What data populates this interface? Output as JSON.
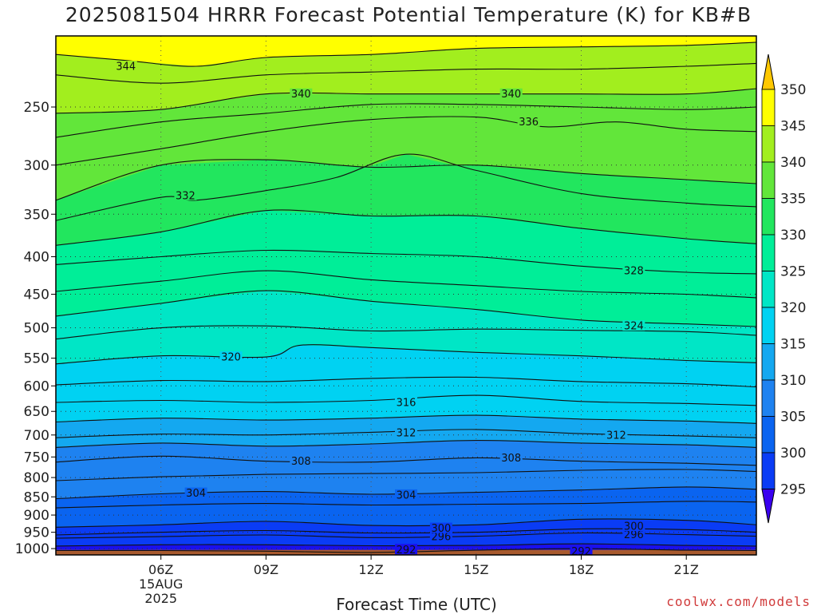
{
  "chart_data": {
    "type": "contour",
    "title": "2025081504 HRRR Forecast Potential Temperature (K) for KB#B",
    "xlabel": "Forecast Time (UTC)",
    "ylabel": "",
    "x_unit": "hours since 2025-08-15 00Z",
    "xlim": [
      3,
      23
    ],
    "x_ticks": [
      {
        "hour": 6,
        "label": "06Z",
        "sub": [
          "15AUG",
          "2025"
        ]
      },
      {
        "hour": 9,
        "label": "09Z"
      },
      {
        "hour": 12,
        "label": "12Z"
      },
      {
        "hour": 15,
        "label": "15Z"
      },
      {
        "hour": 18,
        "label": "18Z"
      },
      {
        "hour": 21,
        "label": "21Z"
      }
    ],
    "y_scale": "log-pressure",
    "ylim": [
      1020,
      200
    ],
    "y_ticks": [
      250,
      300,
      350,
      400,
      450,
      500,
      550,
      600,
      650,
      700,
      750,
      800,
      850,
      900,
      950,
      1000
    ],
    "grid": "dotted",
    "legend": "right colorbar",
    "colorbar": {
      "labels": [
        295,
        300,
        305,
        310,
        315,
        320,
        325,
        330,
        335,
        340,
        345,
        350
      ],
      "colors": [
        "#1a10ee",
        "#0a3cf5",
        "#0a64f0",
        "#1e82f0",
        "#14a8f0",
        "#00d2f2",
        "#00e6c6",
        "#00ee98",
        "#22e65e",
        "#62e63a",
        "#a2ee1e",
        "#ffff00"
      ]
    },
    "ground_color": "#a85a2e",
    "contour_lines": [
      {
        "value": 292,
        "label": "292",
        "points": [
          [
            3,
            1006
          ],
          [
            6,
            1006
          ],
          [
            9,
            1008
          ],
          [
            12,
            1012
          ],
          [
            15,
            1005
          ],
          [
            18,
            1000
          ],
          [
            21,
            1005
          ],
          [
            23,
            1006
          ]
        ],
        "label_at": [
          [
            13,
            1003
          ],
          [
            18,
            1009
          ]
        ]
      },
      {
        "value": 294,
        "label": "",
        "points": [
          [
            3,
            992
          ],
          [
            6,
            988
          ],
          [
            9,
            988
          ],
          [
            12,
            991
          ],
          [
            15,
            990
          ],
          [
            18,
            985
          ],
          [
            21,
            990
          ],
          [
            23,
            992
          ]
        ],
        "label_at": []
      },
      {
        "value": 296,
        "label": "296",
        "points": [
          [
            3,
            968
          ],
          [
            6,
            963
          ],
          [
            9,
            958
          ],
          [
            12,
            966
          ],
          [
            15,
            962
          ],
          [
            18,
            952
          ],
          [
            21,
            957
          ],
          [
            23,
            962
          ]
        ],
        "label_at": [
          [
            14,
            963
          ],
          [
            19.5,
            957
          ]
        ]
      },
      {
        "value": 298,
        "label": "",
        "points": [
          [
            3,
            958
          ],
          [
            6,
            950
          ],
          [
            9,
            945
          ],
          [
            12,
            952
          ],
          [
            15,
            950
          ],
          [
            18,
            940
          ],
          [
            21,
            942
          ],
          [
            23,
            950
          ]
        ],
        "label_at": []
      },
      {
        "value": 300,
        "label": "300",
        "points": [
          [
            3,
            935
          ],
          [
            6,
            928
          ],
          [
            9,
            918
          ],
          [
            12,
            930
          ],
          [
            15,
            928
          ],
          [
            18,
            912
          ],
          [
            21,
            915
          ],
          [
            23,
            928
          ]
        ],
        "label_at": [
          [
            14,
            938
          ],
          [
            19.5,
            932
          ]
        ]
      },
      {
        "value": 302,
        "label": "",
        "points": [
          [
            3,
            880
          ],
          [
            6,
            872
          ],
          [
            9,
            868
          ],
          [
            12,
            872
          ],
          [
            15,
            870
          ],
          [
            18,
            868
          ],
          [
            21,
            862
          ],
          [
            23,
            864
          ]
        ],
        "label_at": []
      },
      {
        "value": 304,
        "label": "304",
        "points": [
          [
            3,
            855
          ],
          [
            6,
            842
          ],
          [
            9,
            836
          ],
          [
            12,
            843
          ],
          [
            15,
            838
          ],
          [
            18,
            832
          ],
          [
            21,
            824
          ],
          [
            23,
            830
          ]
        ],
        "label_at": [
          [
            7,
            840
          ],
          [
            13,
            845
          ]
        ]
      },
      {
        "value": 306,
        "label": "",
        "points": [
          [
            3,
            808
          ],
          [
            6,
            798
          ],
          [
            9,
            792
          ],
          [
            12,
            790
          ],
          [
            15,
            788
          ],
          [
            18,
            782
          ],
          [
            21,
            780
          ],
          [
            23,
            785
          ]
        ],
        "label_at": []
      },
      {
        "value": 308,
        "label": "308",
        "points": [
          [
            3,
            762
          ],
          [
            6,
            748
          ],
          [
            9,
            760
          ],
          [
            12,
            762
          ],
          [
            15,
            752
          ],
          [
            18,
            760
          ],
          [
            21,
            765
          ],
          [
            23,
            770
          ]
        ],
        "label_at": [
          [
            10,
            760
          ],
          [
            16,
            752
          ]
        ]
      },
      {
        "value": 310,
        "label": "",
        "points": [
          [
            3,
            728
          ],
          [
            6,
            718
          ],
          [
            9,
            725
          ],
          [
            12,
            720
          ],
          [
            15,
            712
          ],
          [
            18,
            718
          ],
          [
            21,
            722
          ],
          [
            23,
            728
          ]
        ],
        "label_at": []
      },
      {
        "value": 312,
        "label": "312",
        "points": [
          [
            3,
            706
          ],
          [
            6,
            698
          ],
          [
            9,
            700
          ],
          [
            12,
            694
          ],
          [
            15,
            688
          ],
          [
            18,
            697
          ],
          [
            21,
            702
          ],
          [
            23,
            706
          ]
        ],
        "label_at": [
          [
            13,
            695
          ],
          [
            19,
            700
          ]
        ]
      },
      {
        "value": 314,
        "label": "",
        "points": [
          [
            3,
            672
          ],
          [
            6,
            664
          ],
          [
            9,
            668
          ],
          [
            12,
            664
          ],
          [
            15,
            658
          ],
          [
            18,
            666
          ],
          [
            21,
            670
          ],
          [
            23,
            675
          ]
        ],
        "label_at": []
      },
      {
        "value": 316,
        "label": "316",
        "points": [
          [
            3,
            632
          ],
          [
            6,
            628
          ],
          [
            9,
            632
          ],
          [
            12,
            628
          ],
          [
            15,
            618
          ],
          [
            18,
            630
          ],
          [
            21,
            634
          ],
          [
            23,
            638
          ]
        ],
        "label_at": [
          [
            13,
            632
          ]
        ]
      },
      {
        "value": 318,
        "label": "",
        "points": [
          [
            3,
            598
          ],
          [
            6,
            590
          ],
          [
            9,
            592
          ],
          [
            12,
            586
          ],
          [
            15,
            584
          ],
          [
            18,
            592
          ],
          [
            21,
            596
          ],
          [
            23,
            602
          ]
        ],
        "label_at": []
      },
      {
        "value": 320,
        "label": "320",
        "points": [
          [
            3,
            560
          ],
          [
            6,
            546
          ],
          [
            9,
            548
          ],
          [
            10,
            528
          ],
          [
            12,
            532
          ],
          [
            15,
            540
          ],
          [
            18,
            546
          ],
          [
            21,
            554
          ],
          [
            23,
            558
          ]
        ],
        "label_at": [
          [
            8,
            548
          ]
        ]
      },
      {
        "value": 322,
        "label": "",
        "points": [
          [
            3,
            518
          ],
          [
            6,
            500
          ],
          [
            9,
            497
          ],
          [
            12,
            505
          ],
          [
            15,
            502
          ],
          [
            18,
            504
          ],
          [
            21,
            506
          ],
          [
            23,
            512
          ]
        ],
        "label_at": []
      },
      {
        "value": 324,
        "label": "324",
        "points": [
          [
            3,
            482
          ],
          [
            6,
            463
          ],
          [
            9,
            445
          ],
          [
            12,
            460
          ],
          [
            15,
            472
          ],
          [
            18,
            488
          ],
          [
            21,
            494
          ],
          [
            23,
            498
          ]
        ],
        "label_at": [
          [
            19.5,
            497
          ]
        ]
      },
      {
        "value": 326,
        "label": "",
        "points": [
          [
            3,
            446
          ],
          [
            6,
            432
          ],
          [
            9,
            418
          ],
          [
            12,
            430
          ],
          [
            15,
            438
          ],
          [
            18,
            446
          ],
          [
            21,
            450
          ],
          [
            23,
            455
          ]
        ],
        "label_at": []
      },
      {
        "value": 328,
        "label": "328",
        "points": [
          [
            3,
            410
          ],
          [
            6,
            400
          ],
          [
            9,
            392
          ],
          [
            12,
            396
          ],
          [
            15,
            400
          ],
          [
            18,
            412
          ],
          [
            21,
            420
          ],
          [
            23,
            422
          ]
        ],
        "label_at": [
          [
            19.5,
            418
          ]
        ]
      },
      {
        "value": 330,
        "label": "",
        "points": [
          [
            3,
            386
          ],
          [
            6,
            370
          ],
          [
            9,
            346
          ],
          [
            12,
            352
          ],
          [
            15,
            352
          ],
          [
            18,
            366
          ],
          [
            21,
            378
          ],
          [
            23,
            384
          ]
        ],
        "label_at": []
      },
      {
        "value": 332,
        "label": "332",
        "points": [
          [
            3,
            357
          ],
          [
            6,
            332
          ],
          [
            7,
            335
          ],
          [
            9,
            325
          ],
          [
            11,
            312
          ],
          [
            13,
            290
          ],
          [
            15,
            305
          ],
          [
            18,
            328
          ],
          [
            21,
            338
          ],
          [
            23,
            342
          ]
        ],
        "label_at": [
          [
            6.7,
            330
          ]
        ]
      },
      {
        "value": 334,
        "label": "",
        "points": [
          [
            3,
            335
          ],
          [
            6,
            300
          ],
          [
            9,
            295
          ],
          [
            12,
            302
          ],
          [
            15,
            300
          ],
          [
            18,
            308
          ],
          [
            21,
            314
          ],
          [
            23,
            318
          ]
        ],
        "label_at": []
      },
      {
        "value": 336,
        "label": "336",
        "points": [
          [
            3,
            300
          ],
          [
            6,
            285
          ],
          [
            9,
            270
          ],
          [
            12,
            260
          ],
          [
            15,
            258
          ],
          [
            17,
            266
          ],
          [
            19,
            262
          ],
          [
            21,
            268
          ],
          [
            23,
            270
          ]
        ],
        "label_at": [
          [
            16.5,
            262
          ]
        ]
      },
      {
        "value": 338,
        "label": "",
        "points": [
          [
            3,
            275
          ],
          [
            6,
            262
          ],
          [
            9,
            255
          ],
          [
            12,
            248
          ],
          [
            15,
            248
          ],
          [
            18,
            250
          ],
          [
            21,
            252
          ],
          [
            23,
            250
          ]
        ],
        "label_at": []
      },
      {
        "value": 340,
        "label": "340",
        "points": [
          [
            3,
            255
          ],
          [
            6,
            252
          ],
          [
            9,
            240
          ],
          [
            12,
            240
          ],
          [
            15,
            240
          ],
          [
            18,
            240
          ],
          [
            21,
            240
          ],
          [
            23,
            236
          ]
        ],
        "label_at": [
          [
            10,
            240
          ],
          [
            16,
            240
          ]
        ]
      },
      {
        "value": 342,
        "label": "",
        "points": [
          [
            3,
            226
          ],
          [
            6,
            232
          ],
          [
            9,
            226
          ],
          [
            12,
            224
          ],
          [
            15,
            222
          ],
          [
            18,
            222
          ],
          [
            21,
            220
          ],
          [
            23,
            218
          ]
        ],
        "label_at": []
      },
      {
        "value": 344,
        "label": "344",
        "points": [
          [
            3,
            212
          ],
          [
            5,
            216
          ],
          [
            7,
            220
          ],
          [
            9,
            214
          ],
          [
            12,
            212
          ],
          [
            15,
            208
          ],
          [
            18,
            207
          ],
          [
            21,
            206
          ],
          [
            23,
            204
          ]
        ],
        "label_at": [
          [
            5,
            220
          ]
        ]
      }
    ]
  },
  "credit": "coolwx.com/models"
}
